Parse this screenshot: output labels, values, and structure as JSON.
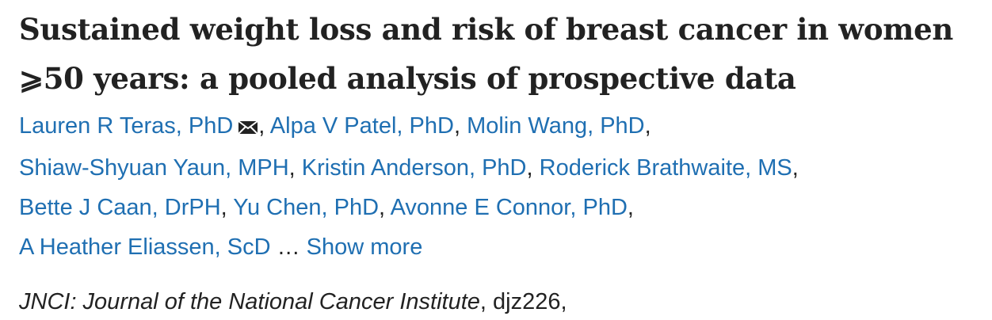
{
  "article": {
    "title": "Sustained weight loss and risk of breast cancer in women ⩾50 years: a pooled analysis of prospective data",
    "authors": [
      "Lauren R Teras, PhD",
      "Alpa V Patel, PhD",
      "Molin Wang, PhD",
      "Shiaw-Shyuan Yaun, MPH",
      "Kristin Anderson, PhD",
      "Roderick Brathwaite, MS",
      "Bette J Caan, DrPH",
      "Yu Chen, PhD",
      "Avonne E Connor, PhD",
      "A Heather Eliassen, ScD"
    ],
    "separator": ", ",
    "ellipsis": "…",
    "show_more_label": "Show more",
    "corresponding_icon": "envelope-icon",
    "journal_name": "JNCI: Journal of the National Cancer Institute",
    "article_id": "djz226,",
    "colors": {
      "link": "#1f6fb2",
      "text": "#222222"
    }
  }
}
